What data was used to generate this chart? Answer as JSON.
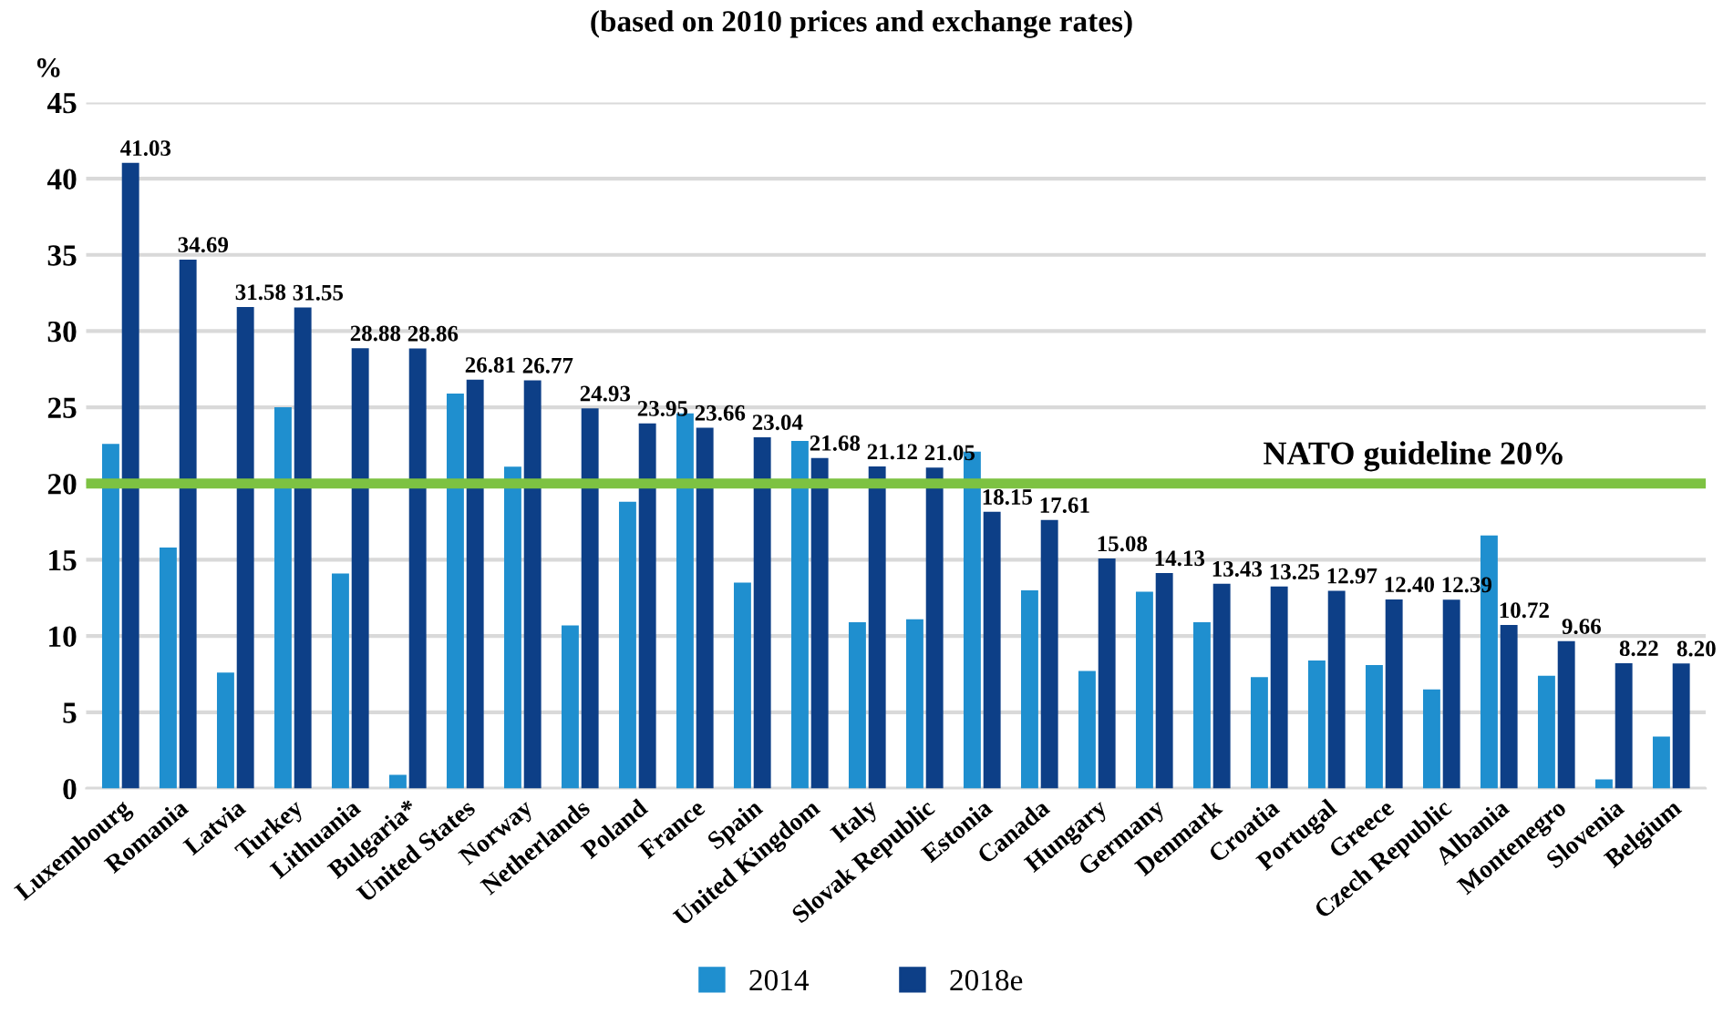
{
  "chart_data": {
    "type": "bar",
    "subtitle": "(based on 2010 prices and exchange rates)",
    "ylabel": "%",
    "categories": [
      "Luxembourg",
      "Romania",
      "Latvia",
      "Turkey",
      "Lithuania",
      "Bulgaria*",
      "United States",
      "Norway",
      "Netherlands",
      "Poland",
      "France",
      "Spain",
      "United Kingdom",
      "Italy",
      "Slovak Republic",
      "Estonia",
      "Canada",
      "Hungary",
      "Germany",
      "Denmark",
      "Croatia",
      "Portugal",
      "Greece",
      "Czech Republic",
      "Albania",
      "Montenegro",
      "Slovenia",
      "Belgium"
    ],
    "series": [
      {
        "name": "2014",
        "color": "#1f8fcf",
        "values": [
          22.6,
          15.8,
          7.6,
          25.0,
          14.1,
          0.9,
          25.9,
          21.1,
          10.7,
          18.8,
          24.6,
          13.5,
          22.8,
          10.9,
          11.1,
          22.1,
          13.0,
          7.7,
          12.9,
          10.9,
          7.3,
          8.4,
          8.1,
          6.5,
          16.6,
          7.4,
          0.6,
          3.4
        ]
      },
      {
        "name": "2018e",
        "color": "#0d3f87",
        "values": [
          41.03,
          34.69,
          31.58,
          31.55,
          28.88,
          28.86,
          26.81,
          26.77,
          24.93,
          23.95,
          23.66,
          23.04,
          21.68,
          21.12,
          21.05,
          18.15,
          17.61,
          15.08,
          14.13,
          13.43,
          13.25,
          12.97,
          12.4,
          12.39,
          10.72,
          9.66,
          8.22,
          8.2
        ],
        "value_labels": [
          "41.03",
          "34.69",
          "31.58",
          "31.55",
          "28.88",
          "28.86",
          "26.81",
          "26.77",
          "24.93",
          "23.95",
          "23.66",
          "23.04",
          "21.68",
          "21.12",
          "21.05",
          "18.15",
          "17.61",
          "15.08",
          "14.13",
          "13.43",
          "13.25",
          "12.97",
          "12.40",
          "12.39",
          "10.72",
          "9.66",
          "8.22",
          "8.20"
        ]
      }
    ],
    "ylim": [
      0,
      45
    ],
    "yticks": [
      0,
      5,
      10,
      15,
      20,
      25,
      30,
      35,
      40,
      45
    ],
    "ref_lines": [
      {
        "axis": "y",
        "value": 20,
        "label": "NATO guideline 20%",
        "color": "#7dc242"
      }
    ],
    "grid": "y",
    "legend": "bottom"
  }
}
